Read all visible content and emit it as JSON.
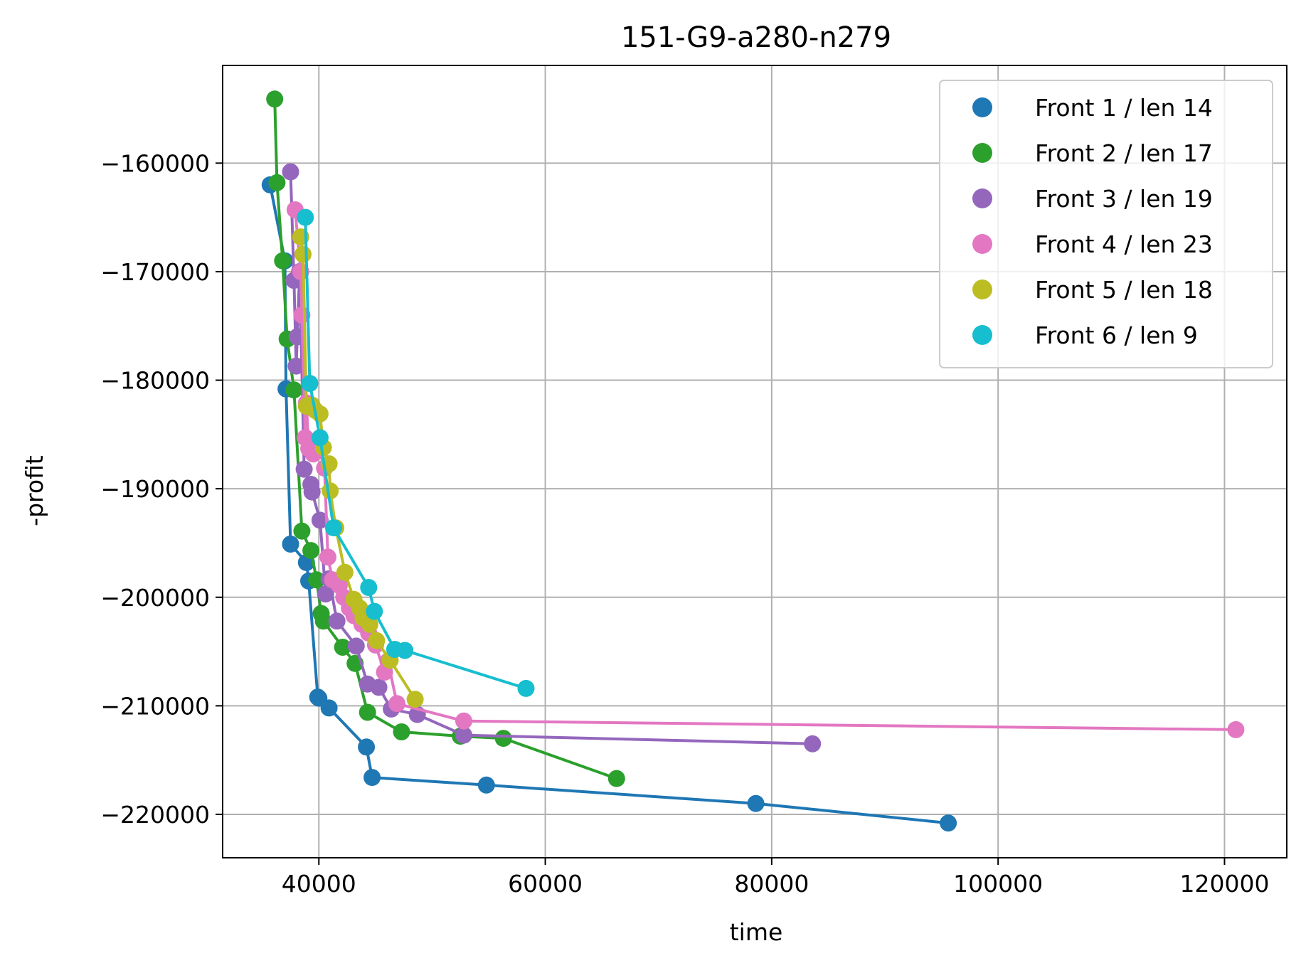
{
  "chart_data": {
    "type": "line",
    "title": "151-G9-a280-n279",
    "xlabel": "time",
    "ylabel": "-profit",
    "xlim": [
      31500,
      125500
    ],
    "ylim": [
      -224000,
      -151000
    ],
    "xticks": [
      40000,
      60000,
      80000,
      100000,
      120000
    ],
    "xtick_labels": [
      "40000",
      "60000",
      "80000",
      "100000",
      "120000"
    ],
    "yticks": [
      -160000,
      -170000,
      -180000,
      -190000,
      -200000,
      -210000,
      -220000
    ],
    "ytick_labels": [
      "−160000",
      "−170000",
      "−180000",
      "−190000",
      "−200000",
      "−210000",
      "−220000"
    ],
    "grid": true,
    "legend_position": "top-right",
    "series": [
      {
        "name": "Front 1 / len 14",
        "color": "#1f77b4",
        "points": [
          [
            35700,
            -162000
          ],
          [
            37000,
            -169000
          ],
          [
            37100,
            -180800
          ],
          [
            37500,
            -195100
          ],
          [
            38900,
            -196800
          ],
          [
            39100,
            -198500
          ],
          [
            39900,
            -209200
          ],
          [
            40000,
            -209300
          ],
          [
            40900,
            -210200
          ],
          [
            44200,
            -213800
          ],
          [
            44700,
            -216600
          ],
          [
            54800,
            -217300
          ],
          [
            78600,
            -219000
          ],
          [
            95600,
            -220800
          ]
        ]
      },
      {
        "name": "Front 2 / len 17",
        "color": "#2ca02c",
        "points": [
          [
            36100,
            -154100
          ],
          [
            36300,
            -161800
          ],
          [
            37200,
            -176200
          ],
          [
            37800,
            -180900
          ],
          [
            38500,
            -193900
          ],
          [
            39300,
            -195700
          ],
          [
            39800,
            -198400
          ],
          [
            40200,
            -201500
          ],
          [
            40400,
            -202200
          ],
          [
            42100,
            -204600
          ],
          [
            43200,
            -206100
          ],
          [
            44300,
            -210600
          ],
          [
            47300,
            -212400
          ],
          [
            52500,
            -212800
          ],
          [
            56300,
            -213000
          ],
          [
            66300,
            -216700
          ],
          [
            36800,
            -169000
          ]
        ]
      },
      {
        "name": "Front 3 / len 19",
        "color": "#9467bd",
        "points": [
          [
            37500,
            -160800
          ],
          [
            37800,
            -170800
          ],
          [
            38000,
            -178700
          ],
          [
            38700,
            -188200
          ],
          [
            39300,
            -189600
          ],
          [
            39400,
            -190300
          ],
          [
            40100,
            -192900
          ],
          [
            40600,
            -199700
          ],
          [
            41600,
            -202200
          ],
          [
            43300,
            -204500
          ],
          [
            44300,
            -208000
          ],
          [
            45300,
            -208300
          ],
          [
            46400,
            -210300
          ],
          [
            48700,
            -210800
          ],
          [
            52800,
            -212700
          ],
          [
            83600,
            -213500
          ],
          [
            38300,
            -170000
          ],
          [
            38100,
            -176000
          ],
          [
            40900,
            -198300
          ]
        ]
      },
      {
        "name": "Front 4 / len 23",
        "color": "#e377c2",
        "points": [
          [
            37900,
            -164300
          ],
          [
            38400,
            -170000
          ],
          [
            38500,
            -174000
          ],
          [
            38800,
            -185300
          ],
          [
            39100,
            -186300
          ],
          [
            39500,
            -186800
          ],
          [
            40500,
            -188100
          ],
          [
            40800,
            -196300
          ],
          [
            41200,
            -198400
          ],
          [
            41800,
            -198900
          ],
          [
            42700,
            -201000
          ],
          [
            43100,
            -201700
          ],
          [
            43800,
            -202500
          ],
          [
            45000,
            -204400
          ],
          [
            45800,
            -206900
          ],
          [
            46900,
            -209800
          ],
          [
            52800,
            -211400
          ],
          [
            121000,
            -212200
          ],
          [
            38900,
            -182100
          ],
          [
            39900,
            -186000
          ],
          [
            42200,
            -200000
          ],
          [
            44400,
            -203300
          ],
          [
            46100,
            -205900
          ]
        ]
      },
      {
        "name": "Front 5 / len 18",
        "color": "#bcbd22",
        "points": [
          [
            38400,
            -166800
          ],
          [
            38600,
            -168400
          ],
          [
            38900,
            -182400
          ],
          [
            39700,
            -182800
          ],
          [
            40100,
            -183100
          ],
          [
            40400,
            -186200
          ],
          [
            40900,
            -187700
          ],
          [
            41000,
            -190200
          ],
          [
            42300,
            -197700
          ],
          [
            43100,
            -200200
          ],
          [
            43600,
            -201000
          ],
          [
            44500,
            -202500
          ],
          [
            45100,
            -204000
          ],
          [
            46300,
            -205800
          ],
          [
            48500,
            -209400
          ],
          [
            39400,
            -182300
          ],
          [
            41500,
            -193600
          ],
          [
            43900,
            -201900
          ]
        ]
      },
      {
        "name": "Front 6 / len 9",
        "color": "#17becf",
        "points": [
          [
            38800,
            -165000
          ],
          [
            39200,
            -180300
          ],
          [
            40100,
            -185300
          ],
          [
            41300,
            -193600
          ],
          [
            44400,
            -199100
          ],
          [
            44900,
            -201300
          ],
          [
            46700,
            -204800
          ],
          [
            47600,
            -204900
          ],
          [
            58300,
            -208400
          ]
        ]
      }
    ]
  }
}
